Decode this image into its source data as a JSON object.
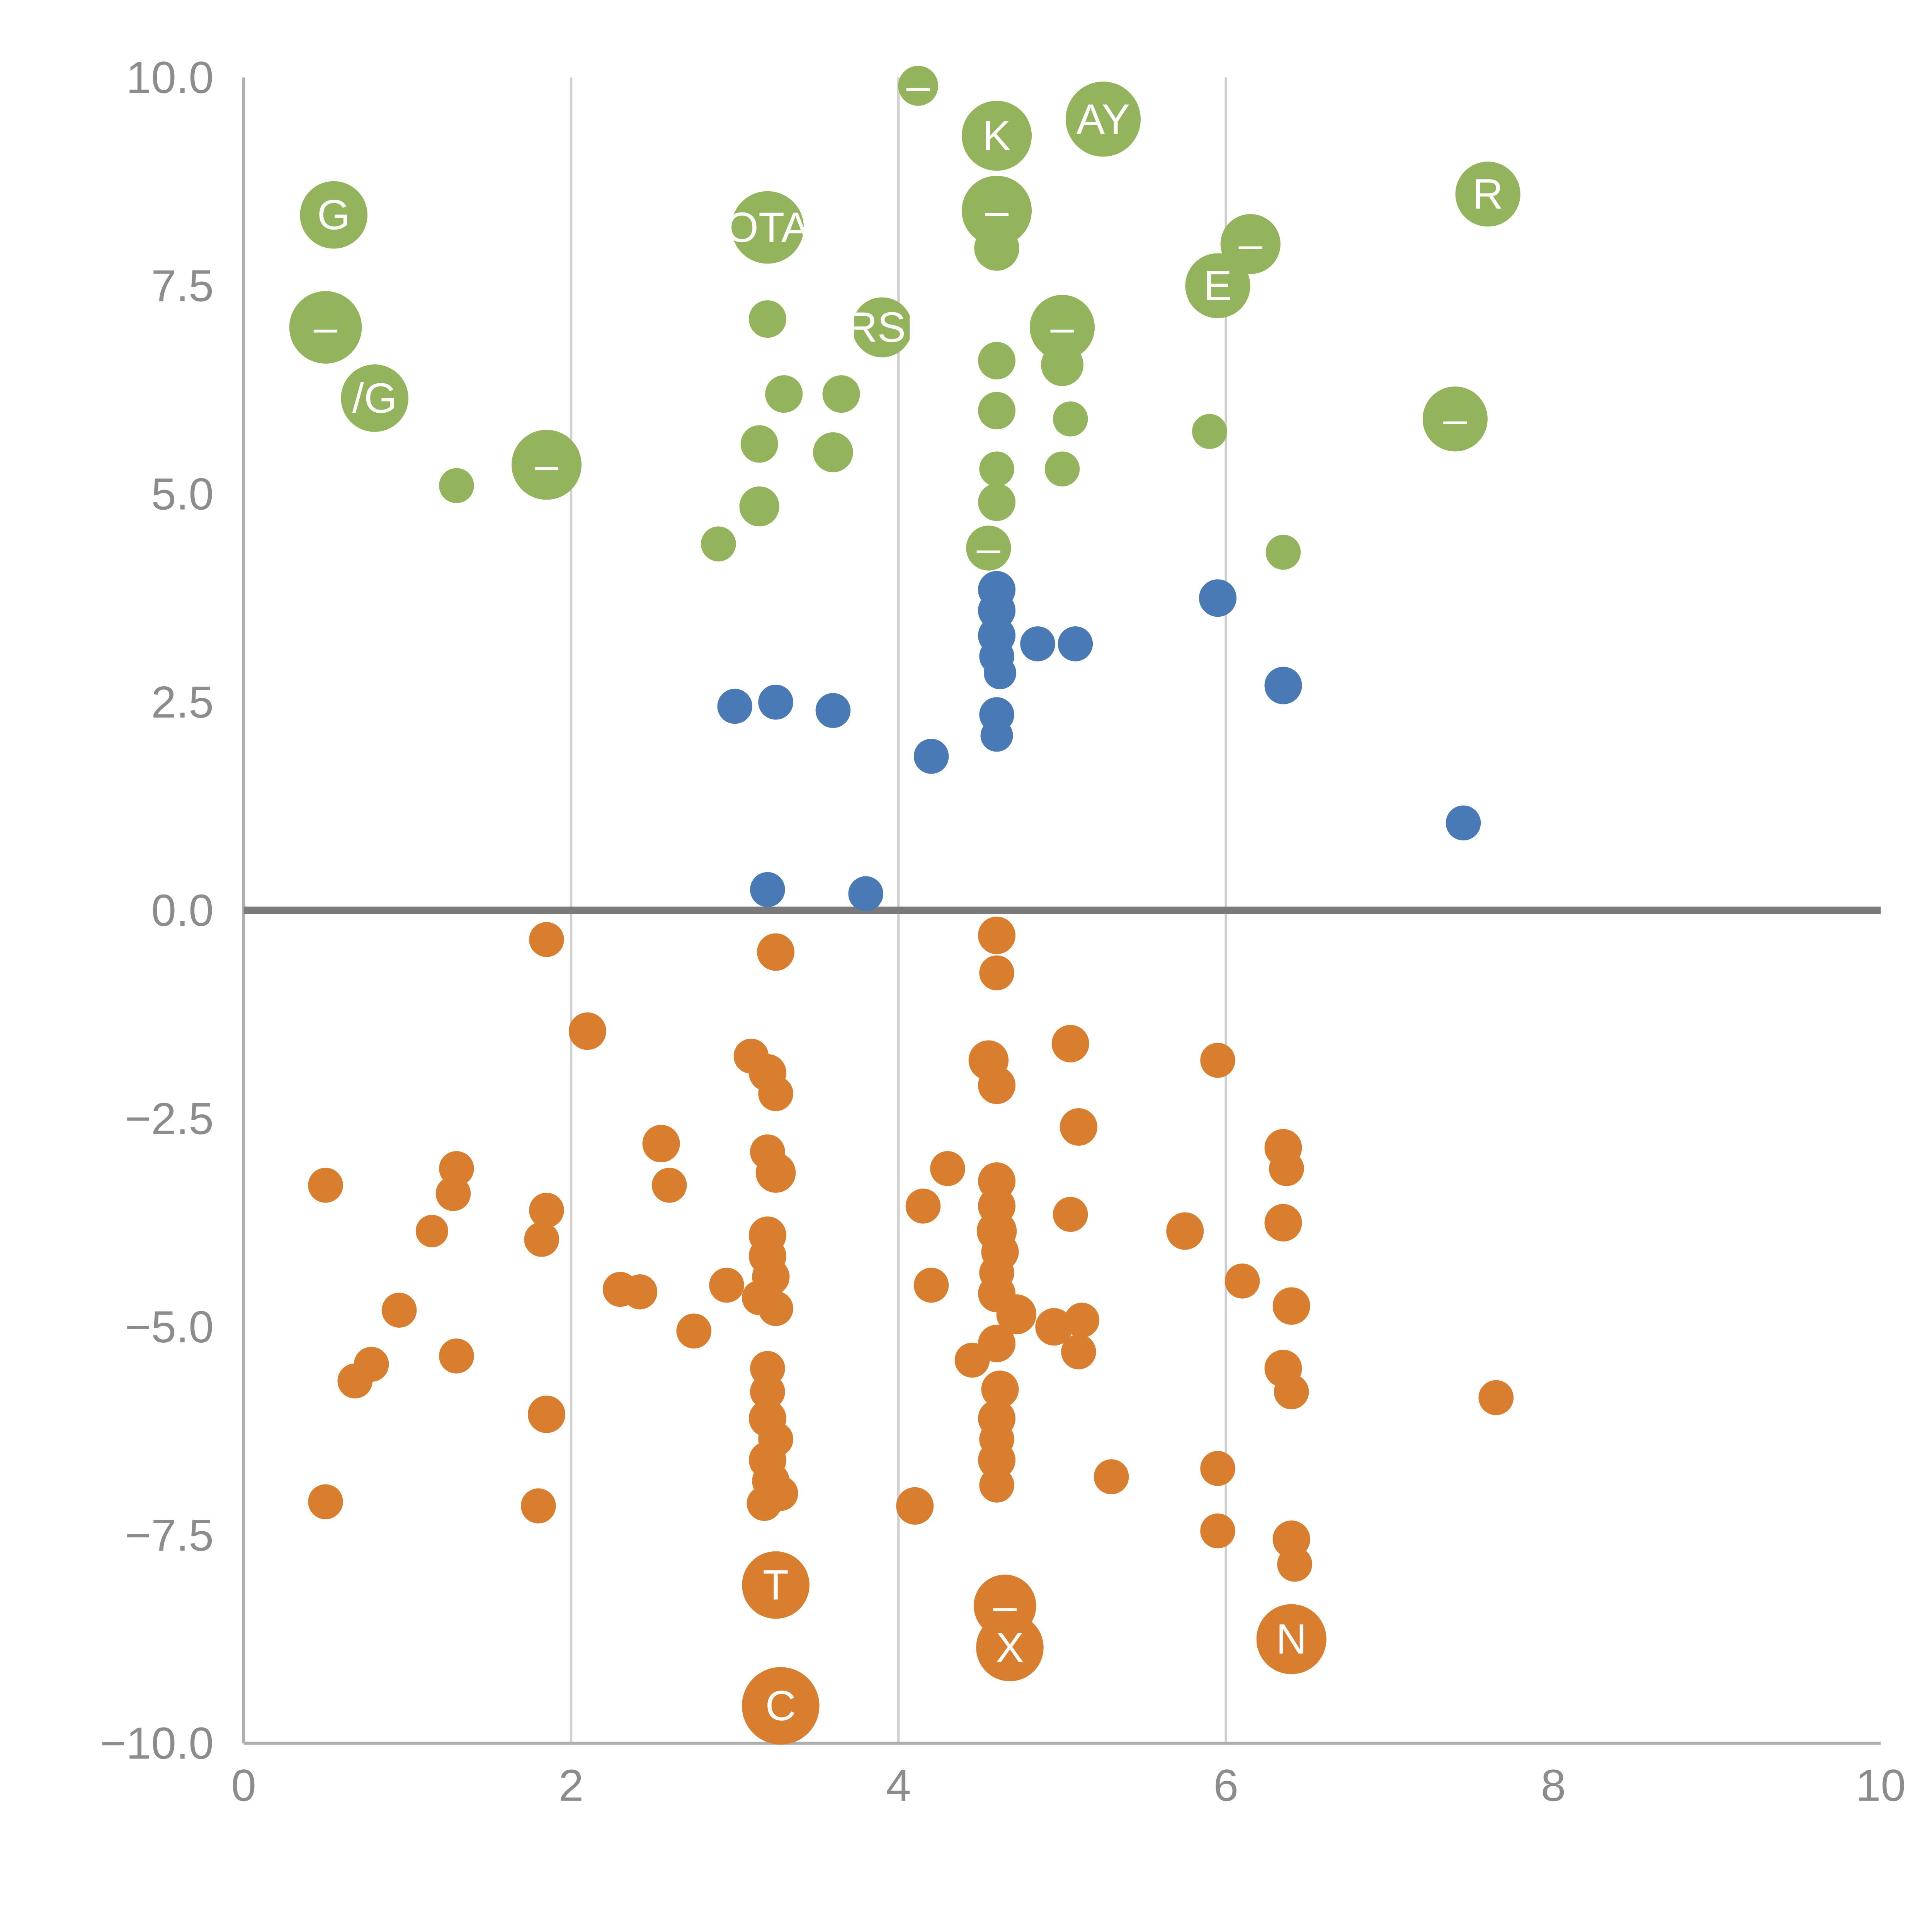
{
  "chart_data": {
    "type": "scatter",
    "title": "",
    "xlabel": "",
    "ylabel": "",
    "xlim": [
      0,
      10
    ],
    "ylim": [
      -10,
      10
    ],
    "x_ticks": [
      {
        "value": 0,
        "label": "0"
      },
      {
        "value": 2,
        "label": "2"
      },
      {
        "value": 4,
        "label": "4"
      },
      {
        "value": 6,
        "label": "6"
      },
      {
        "value": 8,
        "label": "8"
      },
      {
        "value": 10,
        "label": "10"
      }
    ],
    "y_ticks": [
      {
        "value": 10,
        "label": "10.0"
      },
      {
        "value": 7.5,
        "label": "7.5"
      },
      {
        "value": 5,
        "label": "5.0"
      },
      {
        "value": 2.5,
        "label": "2.5"
      },
      {
        "value": 0,
        "label": "0.0"
      },
      {
        "value": -2.5,
        "label": "−2.5"
      },
      {
        "value": -5,
        "label": "−5.0"
      },
      {
        "value": -7.5,
        "label": "−7.5"
      },
      {
        "value": -10,
        "label": "−10.0"
      }
    ],
    "gridlines_x": [
      2,
      4,
      6
    ],
    "zero_line_y": 0,
    "grid": "vertical-only",
    "legend_position": "none",
    "colors": {
      "green": "#93b45c",
      "blue": "#4a7ab5",
      "orange": "#d97e2e",
      "grid": "#cfcfcf",
      "axis_line": "#b0b0b0",
      "zero_line": "#7a7a7a",
      "tick_text": "#8c8c8c",
      "bubble_label_text": "#ffffff"
    },
    "point_format": [
      "x",
      "y",
      "size",
      "label"
    ],
    "series": [
      {
        "name": "green",
        "color": "#93b45c",
        "points": [
          [
            0.55,
            8.35,
            27,
            "G"
          ],
          [
            0.5,
            7.0,
            29,
            "–"
          ],
          [
            0.8,
            6.15,
            27,
            "/G"
          ],
          [
            1.3,
            5.1,
            14,
            ""
          ],
          [
            1.85,
            5.35,
            28,
            "–"
          ],
          [
            2.9,
            4.4,
            14,
            ""
          ],
          [
            3.15,
            4.85,
            16,
            ""
          ],
          [
            3.2,
            8.2,
            29,
            "OTA"
          ],
          [
            3.2,
            7.1,
            15,
            ""
          ],
          [
            3.15,
            5.6,
            15,
            ""
          ],
          [
            3.3,
            6.2,
            15,
            ""
          ],
          [
            3.65,
            6.2,
            15,
            ""
          ],
          [
            3.6,
            5.5,
            16,
            ""
          ],
          [
            3.9,
            7.0,
            24,
            "RSI"
          ],
          [
            4.12,
            9.9,
            16,
            "–"
          ],
          [
            4.6,
            9.3,
            28,
            "K"
          ],
          [
            5.25,
            9.5,
            30,
            "AY"
          ],
          [
            4.6,
            8.4,
            28,
            "–"
          ],
          [
            4.6,
            7.95,
            18,
            ""
          ],
          [
            4.6,
            6.6,
            15,
            ""
          ],
          [
            4.6,
            6.0,
            15,
            ""
          ],
          [
            4.6,
            5.3,
            14,
            ""
          ],
          [
            4.6,
            4.9,
            15,
            ""
          ],
          [
            4.55,
            4.35,
            18,
            "–"
          ],
          [
            5.0,
            7.0,
            26,
            "–"
          ],
          [
            5.0,
            6.55,
            17,
            ""
          ],
          [
            5.05,
            5.9,
            14,
            ""
          ],
          [
            5.0,
            5.3,
            14,
            ""
          ],
          [
            5.95,
            7.5,
            26,
            "E"
          ],
          [
            6.15,
            8.0,
            24,
            "–"
          ],
          [
            5.9,
            5.75,
            14,
            ""
          ],
          [
            6.35,
            4.3,
            14,
            ""
          ],
          [
            7.6,
            8.6,
            26,
            "R"
          ],
          [
            7.4,
            5.9,
            26,
            "–"
          ]
        ]
      },
      {
        "name": "blue",
        "color": "#4a7ab5",
        "points": [
          [
            3.0,
            2.45,
            14,
            ""
          ],
          [
            3.25,
            2.5,
            14,
            ""
          ],
          [
            3.6,
            2.4,
            14,
            ""
          ],
          [
            4.2,
            1.85,
            14,
            ""
          ],
          [
            4.6,
            3.85,
            15,
            ""
          ],
          [
            4.6,
            3.6,
            15,
            ""
          ],
          [
            4.6,
            3.3,
            15,
            ""
          ],
          [
            4.6,
            3.05,
            14,
            ""
          ],
          [
            4.62,
            2.85,
            13,
            ""
          ],
          [
            4.85,
            3.2,
            14,
            ""
          ],
          [
            5.08,
            3.2,
            14,
            ""
          ],
          [
            4.6,
            2.35,
            14,
            ""
          ],
          [
            4.6,
            2.1,
            13,
            ""
          ],
          [
            5.95,
            3.75,
            15,
            ""
          ],
          [
            6.35,
            2.7,
            15,
            ""
          ],
          [
            7.45,
            1.05,
            14,
            ""
          ],
          [
            3.2,
            0.25,
            14,
            ""
          ],
          [
            3.8,
            0.2,
            14,
            ""
          ]
        ]
      },
      {
        "name": "orange",
        "color": "#d97e2e",
        "points": [
          [
            1.85,
            -0.35,
            14,
            ""
          ],
          [
            3.25,
            -0.5,
            15,
            ""
          ],
          [
            4.6,
            -0.3,
            15,
            ""
          ],
          [
            4.6,
            -0.75,
            14,
            ""
          ],
          [
            2.1,
            -1.45,
            15,
            ""
          ],
          [
            3.1,
            -1.75,
            14,
            ""
          ],
          [
            3.2,
            -1.95,
            15,
            ""
          ],
          [
            3.25,
            -2.2,
            14,
            ""
          ],
          [
            5.05,
            -1.6,
            15,
            ""
          ],
          [
            4.55,
            -1.8,
            16,
            ""
          ],
          [
            4.6,
            -2.1,
            15,
            ""
          ],
          [
            5.95,
            -1.8,
            14,
            ""
          ],
          [
            5.1,
            -2.6,
            15,
            ""
          ],
          [
            2.55,
            -2.8,
            15,
            ""
          ],
          [
            2.6,
            -3.3,
            14,
            ""
          ],
          [
            3.2,
            -2.9,
            14,
            ""
          ],
          [
            3.25,
            -3.15,
            16,
            ""
          ],
          [
            0.5,
            -3.3,
            14,
            ""
          ],
          [
            1.3,
            -3.1,
            14,
            ""
          ],
          [
            1.28,
            -3.4,
            14,
            ""
          ],
          [
            1.15,
            -3.85,
            13,
            ""
          ],
          [
            1.85,
            -3.6,
            14,
            ""
          ],
          [
            1.82,
            -3.95,
            14,
            ""
          ],
          [
            4.3,
            -3.1,
            14,
            ""
          ],
          [
            4.15,
            -3.55,
            14,
            ""
          ],
          [
            4.6,
            -3.25,
            15,
            ""
          ],
          [
            4.6,
            -3.55,
            15,
            ""
          ],
          [
            4.6,
            -3.85,
            16,
            ""
          ],
          [
            4.62,
            -4.1,
            15,
            ""
          ],
          [
            5.05,
            -3.65,
            14,
            ""
          ],
          [
            5.75,
            -3.85,
            15,
            ""
          ],
          [
            3.2,
            -3.9,
            15,
            ""
          ],
          [
            3.2,
            -4.15,
            15,
            ""
          ],
          [
            3.22,
            -4.4,
            15,
            ""
          ],
          [
            3.15,
            -4.65,
            14,
            ""
          ],
          [
            3.25,
            -4.78,
            14,
            ""
          ],
          [
            2.3,
            -4.55,
            14,
            ""
          ],
          [
            2.42,
            -4.58,
            14,
            ""
          ],
          [
            2.75,
            -5.05,
            14,
            ""
          ],
          [
            2.95,
            -4.5,
            14,
            ""
          ],
          [
            0.95,
            -4.8,
            14,
            ""
          ],
          [
            0.78,
            -5.45,
            14,
            ""
          ],
          [
            0.68,
            -5.65,
            14,
            ""
          ],
          [
            1.3,
            -5.35,
            14,
            ""
          ],
          [
            1.85,
            -6.05,
            15,
            ""
          ],
          [
            4.2,
            -4.5,
            14,
            ""
          ],
          [
            4.6,
            -4.35,
            14,
            ""
          ],
          [
            4.6,
            -4.6,
            15,
            ""
          ],
          [
            4.72,
            -4.85,
            16,
            ""
          ],
          [
            4.6,
            -5.2,
            15,
            ""
          ],
          [
            4.95,
            -5.0,
            15,
            ""
          ],
          [
            5.12,
            -4.92,
            14,
            ""
          ],
          [
            5.1,
            -5.3,
            14,
            ""
          ],
          [
            4.45,
            -5.4,
            14,
            ""
          ],
          [
            4.62,
            -5.75,
            15,
            ""
          ],
          [
            4.6,
            -6.1,
            15,
            ""
          ],
          [
            4.6,
            -6.35,
            14,
            ""
          ],
          [
            4.6,
            -6.6,
            15,
            ""
          ],
          [
            4.6,
            -6.9,
            14,
            ""
          ],
          [
            3.2,
            -5.5,
            14,
            ""
          ],
          [
            3.2,
            -5.78,
            14,
            ""
          ],
          [
            3.2,
            -6.1,
            15,
            ""
          ],
          [
            3.25,
            -6.35,
            14,
            ""
          ],
          [
            3.2,
            -6.6,
            15,
            ""
          ],
          [
            3.22,
            -6.85,
            15,
            ""
          ],
          [
            3.28,
            -7.0,
            14,
            ""
          ],
          [
            3.18,
            -7.12,
            14,
            ""
          ],
          [
            1.8,
            -7.15,
            14,
            ""
          ],
          [
            0.5,
            -7.1,
            14,
            ""
          ],
          [
            4.1,
            -7.15,
            15,
            ""
          ],
          [
            5.3,
            -6.8,
            14,
            ""
          ],
          [
            5.95,
            -6.7,
            14,
            ""
          ],
          [
            5.95,
            -7.45,
            14,
            ""
          ],
          [
            6.4,
            -4.75,
            15,
            ""
          ],
          [
            6.35,
            -2.85,
            15,
            ""
          ],
          [
            6.37,
            -3.1,
            14,
            ""
          ],
          [
            6.35,
            -3.75,
            15,
            ""
          ],
          [
            6.35,
            -5.5,
            15,
            ""
          ],
          [
            6.4,
            -5.78,
            14,
            ""
          ],
          [
            6.4,
            -7.55,
            15,
            ""
          ],
          [
            6.42,
            -7.85,
            14,
            ""
          ],
          [
            6.1,
            -4.45,
            14,
            ""
          ],
          [
            7.65,
            -5.85,
            14,
            ""
          ],
          [
            3.25,
            -8.1,
            27,
            "T"
          ],
          [
            4.65,
            -8.35,
            25,
            "–"
          ],
          [
            4.68,
            -8.85,
            27,
            "X"
          ],
          [
            6.4,
            -8.75,
            28,
            "N"
          ],
          [
            3.28,
            -9.55,
            31,
            "C"
          ]
        ]
      }
    ]
  }
}
